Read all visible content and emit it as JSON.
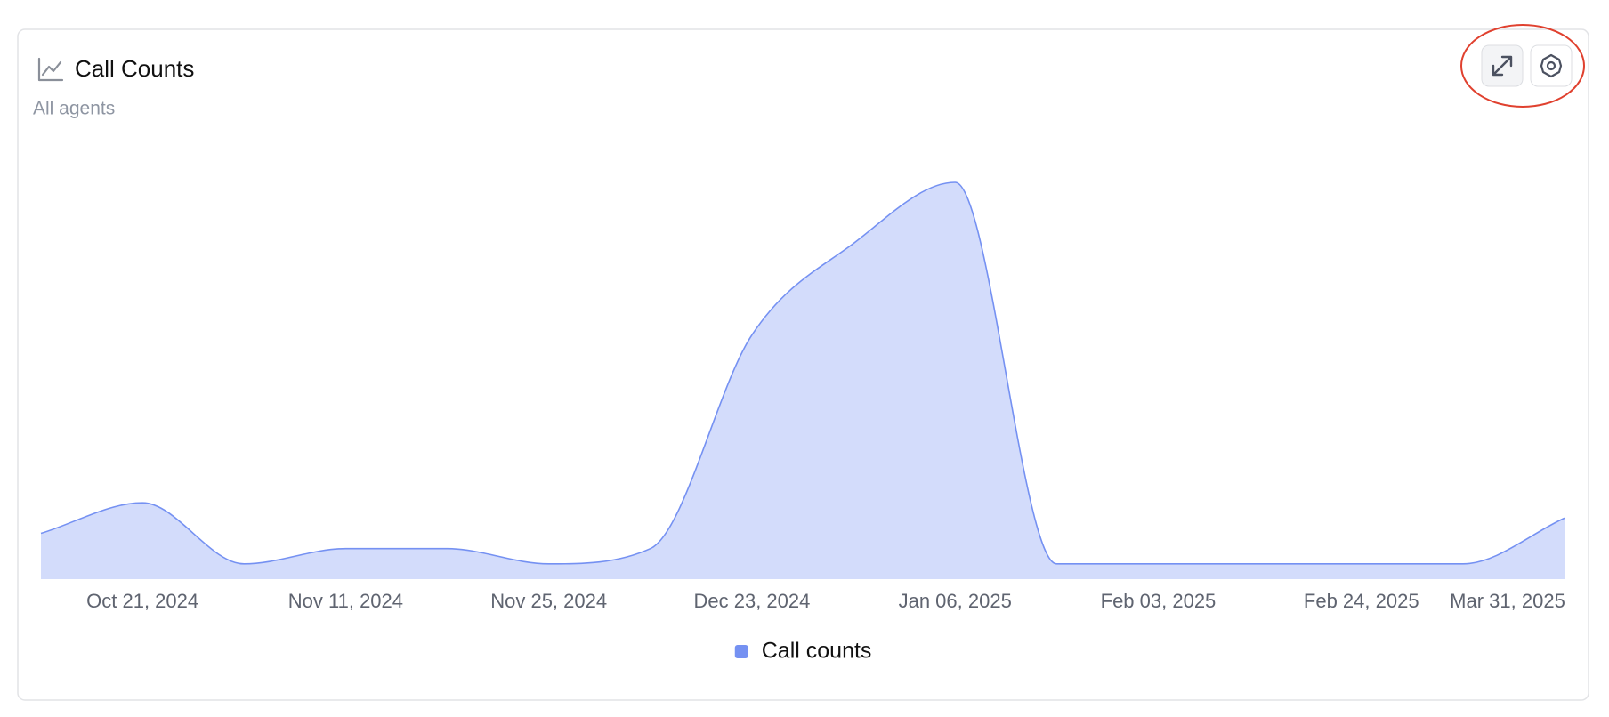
{
  "chart_data": {
    "type": "area",
    "title": "Call Counts",
    "subtitle": "All agents",
    "categories": [
      null,
      "Oct 21, 2024",
      null,
      "Nov 11, 2024",
      null,
      "Nov 25, 2024",
      null,
      "Dec 23, 2024",
      null,
      "Jan 06, 2025",
      null,
      "Feb 03, 2025",
      null,
      "Feb 24, 2025",
      null,
      "Mar 31, 2025"
    ],
    "series": [
      {
        "name": "Call counts",
        "color": "#7591f2",
        "values": [
          3,
          5,
          1,
          2,
          2,
          1,
          2,
          16,
          22,
          26,
          1,
          1,
          1,
          1,
          1,
          4
        ]
      }
    ],
    "legend": "bottom"
  }
}
